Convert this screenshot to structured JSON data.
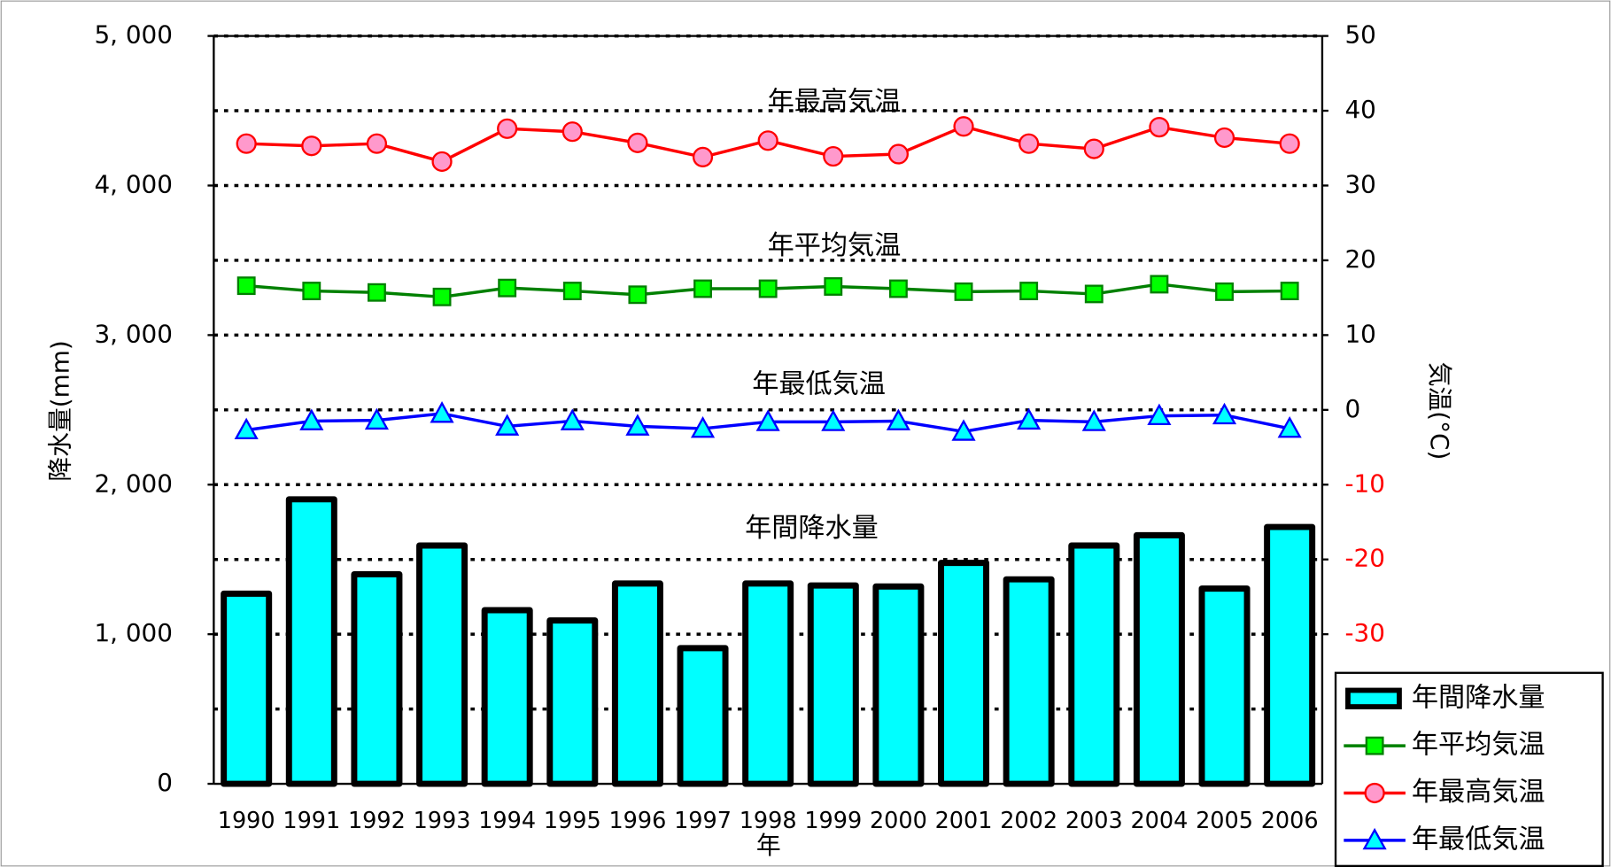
{
  "chart_data": {
    "type": "bar_line",
    "categories": [
      "1990",
      "1991",
      "1992",
      "1993",
      "1994",
      "1995",
      "1996",
      "1997",
      "1998",
      "1999",
      "2000",
      "2001",
      "2002",
      "2003",
      "2004",
      "2005",
      "2006"
    ],
    "xlabel": "年",
    "ylabel": "降水量(mm)",
    "y2label": "気温(°C)",
    "ylim": [
      0,
      5000
    ],
    "yticks": [
      0,
      {
        "value": 1000,
        "label": "1, 000"
      },
      {
        "value": 2000,
        "label": "2, 000"
      },
      {
        "value": 3000,
        "label": "3, 000"
      },
      {
        "value": 4000,
        "label": "4, 000"
      },
      {
        "value": 5000,
        "label": "5, 000"
      }
    ],
    "minor_grid": [
      500,
      1500,
      2500,
      3500,
      4500
    ],
    "y2lim": [
      -50,
      50
    ],
    "y2ticks": [
      -30,
      -20,
      -10,
      0,
      10,
      20,
      30,
      40,
      50
    ],
    "negative_tick_color": "#ff0000",
    "grid": true,
    "legend": "lower right",
    "annotations": [
      "年最高気温",
      "年平均気温",
      "年最低気温",
      "年間降水量"
    ],
    "series": [
      {
        "name": "年間降水量",
        "kind": "bar",
        "color": "#00ffff",
        "edge": "#000000",
        "values": [
          1271,
          1902,
          1401,
          1593,
          1161,
          1092,
          1339,
          907,
          1339,
          1326,
          1319,
          1477,
          1367,
          1593,
          1662,
          1305,
          1717
        ]
      },
      {
        "name": "年平均気温",
        "kind": "line",
        "marker": "square",
        "color": "#008000",
        "marker_color": "#00ff00",
        "axis": "y2",
        "values": [
          16.6,
          15.9,
          15.7,
          15.1,
          16.3,
          15.9,
          15.4,
          16.2,
          16.2,
          16.5,
          16.2,
          15.8,
          15.9,
          15.5,
          16.8,
          15.8,
          15.9
        ]
      },
      {
        "name": "年最高気温",
        "kind": "line",
        "marker": "circle",
        "color": "#ff0000",
        "marker_color": "#ff99cc",
        "axis": "y2",
        "values": [
          35.6,
          35.3,
          35.6,
          33.2,
          37.6,
          37.2,
          35.7,
          33.8,
          36.0,
          33.9,
          34.2,
          37.9,
          35.6,
          34.9,
          37.8,
          36.4,
          35.6
        ]
      },
      {
        "name": "年最低気温",
        "kind": "line",
        "marker": "triangle",
        "color": "#0000ff",
        "marker_color": "#00ffff",
        "axis": "y2",
        "values": [
          -2.7,
          -1.5,
          -1.4,
          -0.5,
          -2.2,
          -1.5,
          -2.2,
          -2.5,
          -1.6,
          -1.6,
          -1.5,
          -2.9,
          -1.4,
          -1.6,
          -0.8,
          -0.7,
          -2.5
        ]
      }
    ]
  }
}
